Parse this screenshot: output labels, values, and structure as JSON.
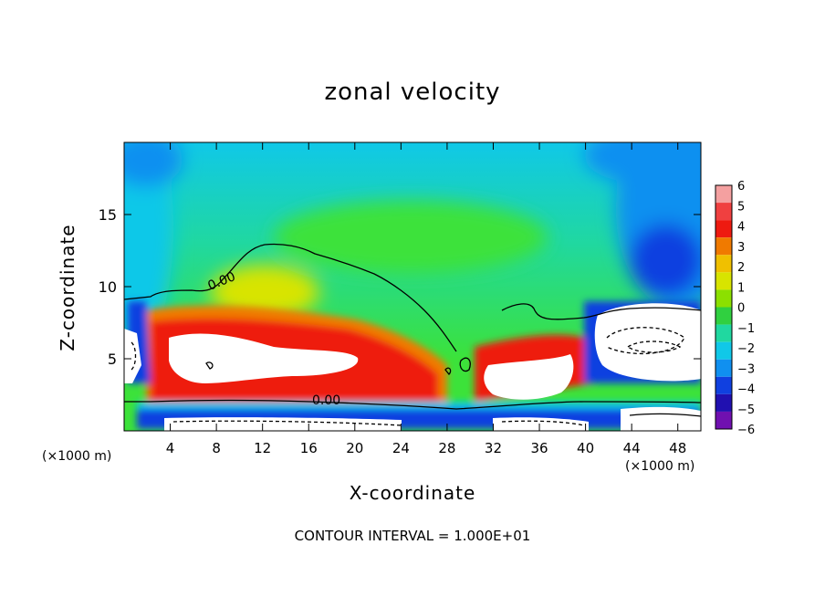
{
  "chart_data": {
    "type": "heatmap",
    "title": "zonal velocity",
    "xlabel": "X-coordinate",
    "ylabel": "Z-coordinate",
    "x_unit_note": "(×1000 m)",
    "x_unit_note_right": "(×1000 m)",
    "xlim": [
      0,
      50
    ],
    "ylim": [
      0,
      20
    ],
    "x_ticks": [
      4,
      8,
      12,
      16,
      20,
      24,
      28,
      32,
      36,
      40,
      44,
      48
    ],
    "y_ticks": [
      5,
      10,
      15
    ],
    "colorbar": {
      "levels": [
        6,
        5,
        4,
        3,
        2,
        1,
        0,
        -1,
        -2,
        -3,
        -4,
        -5,
        -6
      ],
      "colors": [
        "#f4a0a0",
        "#f04040",
        "#ee1a10",
        "#f07a00",
        "#f0c000",
        "#d8e400",
        "#8ce000",
        "#30d040",
        "#20d8a0",
        "#10c8e8",
        "#1090f0",
        "#1040e0",
        "#2010b0",
        "#7010b0"
      ]
    },
    "contour_label": "0.00",
    "contour_labels": [
      "0.00",
      "0.00"
    ],
    "footnote": "CONTOUR INTERVAL = 1.000E+01"
  },
  "colors": {
    "background": "#ffffff",
    "field_bg": "#3ce23a"
  }
}
